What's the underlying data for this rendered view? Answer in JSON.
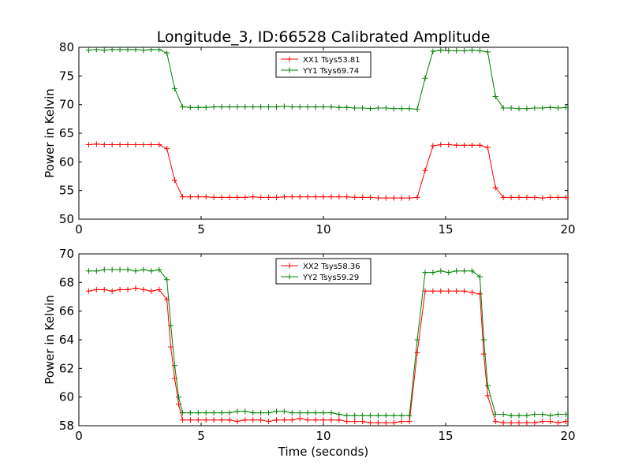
{
  "title": "Longitude_3, ID:66528 Calibrated Amplitude",
  "xlabel": "Time (seconds)",
  "ylabel": "Power in Kelvin",
  "chart_data": [
    {
      "type": "line",
      "xlim": [
        0,
        20
      ],
      "ylim": [
        50,
        80
      ],
      "xticks": [
        "0",
        "5",
        "10",
        "15",
        "20"
      ],
      "yticks": [
        "50",
        "55",
        "60",
        "65",
        "70",
        "75",
        "80"
      ],
      "legend_position": "top-center",
      "x": [
        0.4,
        0.72,
        1.04,
        1.36,
        1.68,
        2.0,
        2.32,
        2.64,
        2.96,
        3.28,
        3.6,
        3.92,
        4.24,
        4.56,
        4.88,
        5.2,
        5.52,
        5.84,
        6.16,
        6.48,
        6.8,
        7.12,
        7.44,
        7.76,
        8.08,
        8.4,
        8.72,
        9.04,
        9.36,
        9.68,
        10.0,
        10.32,
        10.64,
        10.96,
        11.28,
        11.6,
        11.92,
        12.24,
        12.56,
        12.88,
        13.2,
        13.52,
        13.84,
        14.16,
        14.48,
        14.8,
        15.12,
        15.44,
        15.76,
        16.08,
        16.4,
        16.72,
        17.04,
        17.36,
        17.68,
        18.0,
        18.32,
        18.64,
        18.96,
        19.28,
        19.6,
        19.92
      ],
      "series": [
        {
          "name": "XX1 Tsys53.81",
          "color": "#ff0000",
          "values": [
            63.0,
            63.1,
            63.0,
            63.0,
            63.0,
            63.0,
            63.0,
            63.0,
            63.0,
            63.0,
            62.3,
            56.8,
            53.9,
            53.9,
            53.9,
            53.9,
            53.8,
            53.8,
            53.8,
            53.8,
            53.8,
            53.9,
            53.8,
            53.8,
            53.8,
            53.9,
            53.9,
            53.9,
            53.9,
            53.9,
            53.9,
            53.9,
            53.9,
            53.9,
            53.8,
            53.8,
            53.8,
            53.7,
            53.7,
            53.7,
            53.7,
            53.7,
            53.8,
            58.5,
            62.8,
            63.0,
            63.0,
            62.9,
            62.9,
            62.9,
            62.9,
            62.5,
            55.5,
            53.8,
            53.8,
            53.8,
            53.8,
            53.8,
            53.7,
            53.8,
            53.8,
            53.8
          ]
        },
        {
          "name": "YY1 Tsys69.74",
          "color": "#008000",
          "values": [
            79.5,
            79.6,
            79.5,
            79.6,
            79.6,
            79.6,
            79.6,
            79.5,
            79.6,
            79.6,
            79.0,
            72.8,
            69.6,
            69.5,
            69.5,
            69.5,
            69.6,
            69.6,
            69.6,
            69.6,
            69.6,
            69.6,
            69.6,
            69.6,
            69.6,
            69.7,
            69.6,
            69.6,
            69.6,
            69.6,
            69.6,
            69.6,
            69.5,
            69.5,
            69.4,
            69.4,
            69.3,
            69.4,
            69.4,
            69.3,
            69.3,
            69.3,
            69.2,
            74.6,
            79.3,
            79.5,
            79.4,
            79.4,
            79.4,
            79.5,
            79.4,
            79.2,
            71.4,
            69.4,
            69.4,
            69.3,
            69.3,
            69.4,
            69.4,
            69.5,
            69.4,
            69.5
          ]
        }
      ]
    },
    {
      "type": "line",
      "xlim": [
        0,
        20
      ],
      "ylim": [
        58,
        70
      ],
      "xticks": [
        "0",
        "5",
        "10",
        "15",
        "20"
      ],
      "yticks": [
        "58",
        "60",
        "62",
        "64",
        "66",
        "68",
        "70"
      ],
      "legend_position": "top-center",
      "x": [
        0.4,
        0.72,
        1.04,
        1.36,
        1.68,
        2.0,
        2.32,
        2.64,
        2.96,
        3.28,
        3.6,
        3.76,
        3.92,
        4.08,
        4.24,
        4.56,
        4.88,
        5.2,
        5.52,
        5.84,
        6.16,
        6.48,
        6.8,
        7.12,
        7.44,
        7.76,
        8.08,
        8.4,
        8.72,
        9.04,
        9.36,
        9.68,
        10.0,
        10.32,
        10.64,
        10.96,
        11.28,
        11.6,
        11.92,
        12.24,
        12.56,
        12.88,
        13.2,
        13.52,
        13.84,
        14.16,
        14.48,
        14.8,
        15.12,
        15.44,
        15.76,
        16.08,
        16.4,
        16.56,
        16.72,
        17.04,
        17.36,
        17.68,
        18.0,
        18.32,
        18.64,
        18.96,
        19.28,
        19.6,
        19.92
      ],
      "series": [
        {
          "name": "XX2 Tsys58.36",
          "color": "#ff0000",
          "values": [
            67.4,
            67.5,
            67.5,
            67.4,
            67.5,
            67.5,
            67.6,
            67.5,
            67.4,
            67.5,
            66.8,
            63.5,
            61.3,
            59.5,
            58.4,
            58.4,
            58.4,
            58.4,
            58.4,
            58.4,
            58.4,
            58.3,
            58.4,
            58.4,
            58.4,
            58.3,
            58.4,
            58.4,
            58.4,
            58.5,
            58.4,
            58.4,
            58.4,
            58.4,
            58.4,
            58.3,
            58.3,
            58.3,
            58.2,
            58.2,
            58.2,
            58.2,
            58.3,
            58.3,
            63.1,
            67.4,
            67.4,
            67.4,
            67.4,
            67.4,
            67.4,
            67.3,
            67.2,
            63.0,
            60.1,
            58.3,
            58.2,
            58.2,
            58.2,
            58.2,
            58.2,
            58.3,
            58.3,
            58.2,
            58.3
          ]
        },
        {
          "name": "YY2 Tsys59.29",
          "color": "#008000",
          "values": [
            68.8,
            68.8,
            68.9,
            68.9,
            68.9,
            68.9,
            68.8,
            68.9,
            68.8,
            68.9,
            68.2,
            65.0,
            62.2,
            60.0,
            58.9,
            58.9,
            58.9,
            58.9,
            58.9,
            58.9,
            58.9,
            59.0,
            59.0,
            58.9,
            58.9,
            58.9,
            59.0,
            59.0,
            58.9,
            58.9,
            58.9,
            58.9,
            58.9,
            58.9,
            58.8,
            58.7,
            58.7,
            58.7,
            58.7,
            58.7,
            58.7,
            58.7,
            58.7,
            58.7,
            64.0,
            68.7,
            68.7,
            68.8,
            68.7,
            68.8,
            68.8,
            68.8,
            68.4,
            64.0,
            60.8,
            58.8,
            58.8,
            58.7,
            58.7,
            58.7,
            58.8,
            58.8,
            58.7,
            58.8,
            58.8
          ]
        }
      ]
    }
  ]
}
